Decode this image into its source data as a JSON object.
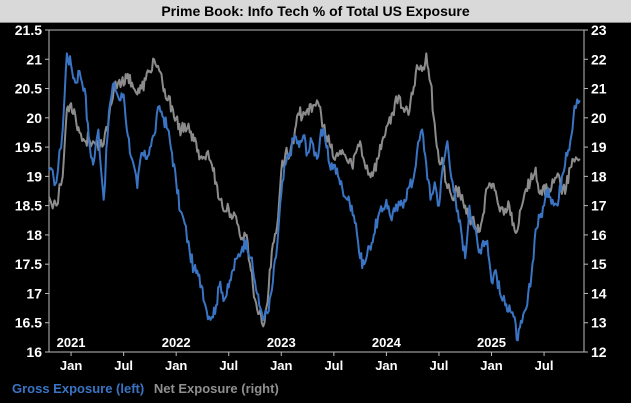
{
  "chart_data": {
    "type": "line",
    "title": "Prime Book: Info Tech % of Total US Exposure",
    "left_axis": {
      "range": [
        16,
        21.5
      ],
      "ticks": [
        16,
        16.5,
        17,
        17.5,
        18,
        18.5,
        19,
        19.5,
        20,
        20.5,
        21,
        21.5
      ]
    },
    "right_axis": {
      "range": [
        12,
        23
      ],
      "ticks": [
        12,
        13,
        14,
        15,
        16,
        17,
        18,
        19,
        20,
        21,
        22,
        23
      ]
    },
    "x_range": [
      2020.83,
      2025.92
    ],
    "month_ticks": [
      {
        "label": "Jan",
        "x": 2021.04
      },
      {
        "label": "Jul",
        "x": 2021.54
      },
      {
        "label": "Jan",
        "x": 2022.04
      },
      {
        "label": "Jul",
        "x": 2022.54
      },
      {
        "label": "Jan",
        "x": 2023.04
      },
      {
        "label": "Jul",
        "x": 2023.54
      },
      {
        "label": "Jan",
        "x": 2024.04
      },
      {
        "label": "Jul",
        "x": 2024.54
      },
      {
        "label": "Jan",
        "x": 2025.04
      },
      {
        "label": "Jul",
        "x": 2025.54
      }
    ],
    "year_labels": [
      {
        "label": "2021",
        "x": 2021.04
      },
      {
        "label": "2022",
        "x": 2022.04
      },
      {
        "label": "2023",
        "x": 2023.04
      },
      {
        "label": "2024",
        "x": 2024.04
      },
      {
        "label": "2025",
        "x": 2025.04
      }
    ],
    "series": [
      {
        "name": "Gross Exposure (left)",
        "axis": "left",
        "color": "#3a74c4",
        "x": [
          2020.83,
          2020.9,
          2020.96,
          2021.0,
          2021.04,
          2021.08,
          2021.12,
          2021.17,
          2021.21,
          2021.25,
          2021.3,
          2021.35,
          2021.4,
          2021.45,
          2021.5,
          2021.54,
          2021.58,
          2021.62,
          2021.67,
          2021.71,
          2021.75,
          2021.79,
          2021.83,
          2021.88,
          2021.92,
          2021.96,
          2022.0,
          2022.04,
          2022.08,
          2022.12,
          2022.17,
          2022.21,
          2022.25,
          2022.29,
          2022.33,
          2022.38,
          2022.42,
          2022.46,
          2022.5,
          2022.54,
          2022.58,
          2022.62,
          2022.67,
          2022.71,
          2022.75,
          2022.79,
          2022.83,
          2022.88,
          2022.92,
          2022.96,
          2023.0,
          2023.04,
          2023.08,
          2023.12,
          2023.17,
          2023.21,
          2023.25,
          2023.29,
          2023.33,
          2023.38,
          2023.42,
          2023.46,
          2023.5,
          2023.54,
          2023.58,
          2023.62,
          2023.67,
          2023.71,
          2023.75,
          2023.79,
          2023.83,
          2023.88,
          2023.92,
          2023.96,
          2024.0,
          2024.04,
          2024.08,
          2024.12,
          2024.17,
          2024.21,
          2024.25,
          2024.29,
          2024.33,
          2024.38,
          2024.42,
          2024.46,
          2024.5,
          2024.54,
          2024.58,
          2024.62,
          2024.67,
          2024.71,
          2024.75,
          2024.79,
          2024.83,
          2024.88,
          2024.92,
          2024.96,
          2025.0,
          2025.04,
          2025.08,
          2025.12,
          2025.17,
          2025.21,
          2025.25,
          2025.29,
          2025.33,
          2025.38,
          2025.42,
          2025.46,
          2025.5,
          2025.54,
          2025.58,
          2025.62,
          2025.67,
          2025.71,
          2025.75,
          2025.79,
          2025.83,
          2025.88
        ],
        "values": [
          19.1,
          18.9,
          19.8,
          21.1,
          20.9,
          20.6,
          20.8,
          20.5,
          19.6,
          19.2,
          19.8,
          18.6,
          20.1,
          20.6,
          20.3,
          20.4,
          19.7,
          19.3,
          18.8,
          19.4,
          19.3,
          19.5,
          19.7,
          20.2,
          20.0,
          19.8,
          19.4,
          18.9,
          18.4,
          18.2,
          17.7,
          17.4,
          17.3,
          17.1,
          16.7,
          16.6,
          16.8,
          17.2,
          16.9,
          17.1,
          17.4,
          17.6,
          17.8,
          17.9,
          17.6,
          17.2,
          16.8,
          16.6,
          16.7,
          17.2,
          17.8,
          18.7,
          19.2,
          19.4,
          19.7,
          19.5,
          19.7,
          19.4,
          19.6,
          19.3,
          19.8,
          19.6,
          19.2,
          19.2,
          19.0,
          18.8,
          18.6,
          18.5,
          18.2,
          17.6,
          17.5,
          17.8,
          18.0,
          18.3,
          18.4,
          18.6,
          18.3,
          18.4,
          18.5,
          18.6,
          18.8,
          18.9,
          19.4,
          19.8,
          19.2,
          18.6,
          18.9,
          18.5,
          19.2,
          19.6,
          18.9,
          18.4,
          18.1,
          17.6,
          18.5,
          18.1,
          17.7,
          17.9,
          17.9,
          17.2,
          17.4,
          17.0,
          16.8,
          16.8,
          16.6,
          16.2,
          16.5,
          16.8,
          17.3,
          18.1,
          18.3,
          18.5,
          18.8,
          18.6,
          18.5,
          19.0,
          19.4,
          19.6,
          20.2,
          20.3
        ]
      },
      {
        "name": "Net Exposure (right)",
        "axis": "right",
        "color": "#8c8c8c",
        "x": [
          2020.83,
          2020.9,
          2020.96,
          2021.0,
          2021.04,
          2021.08,
          2021.12,
          2021.17,
          2021.21,
          2021.25,
          2021.3,
          2021.35,
          2021.4,
          2021.45,
          2021.5,
          2021.54,
          2021.58,
          2021.62,
          2021.67,
          2021.71,
          2021.75,
          2021.79,
          2021.83,
          2021.88,
          2021.92,
          2021.96,
          2022.0,
          2022.04,
          2022.08,
          2022.12,
          2022.17,
          2022.21,
          2022.25,
          2022.29,
          2022.33,
          2022.38,
          2022.42,
          2022.46,
          2022.5,
          2022.54,
          2022.58,
          2022.62,
          2022.67,
          2022.71,
          2022.75,
          2022.79,
          2022.83,
          2022.88,
          2022.92,
          2022.96,
          2023.0,
          2023.04,
          2023.08,
          2023.12,
          2023.17,
          2023.21,
          2023.25,
          2023.29,
          2023.33,
          2023.38,
          2023.42,
          2023.46,
          2023.5,
          2023.54,
          2023.58,
          2023.62,
          2023.67,
          2023.71,
          2023.75,
          2023.79,
          2023.83,
          2023.88,
          2023.92,
          2023.96,
          2024.0,
          2024.04,
          2024.08,
          2024.12,
          2024.17,
          2024.21,
          2024.25,
          2024.29,
          2024.33,
          2024.38,
          2024.42,
          2024.46,
          2024.5,
          2024.54,
          2024.58,
          2024.62,
          2024.67,
          2024.71,
          2024.75,
          2024.79,
          2024.83,
          2024.88,
          2024.92,
          2024.96,
          2025.0,
          2025.04,
          2025.08,
          2025.12,
          2025.17,
          2025.21,
          2025.25,
          2025.29,
          2025.33,
          2025.38,
          2025.42,
          2025.46,
          2025.5,
          2025.54,
          2025.58,
          2025.62,
          2025.67,
          2025.71,
          2025.75,
          2025.79,
          2025.83,
          2025.88
        ],
        "values": [
          17.3,
          17.0,
          18.0,
          20.3,
          20.5,
          20.1,
          19.5,
          19.2,
          19.3,
          19.2,
          18.9,
          19.1,
          20.0,
          21.1,
          21.3,
          21.1,
          21.5,
          21.2,
          20.8,
          21.0,
          21.3,
          21.6,
          22.0,
          21.6,
          20.9,
          20.6,
          20.4,
          20.0,
          19.4,
          19.8,
          19.5,
          19.2,
          18.9,
          18.6,
          18.8,
          18.4,
          17.8,
          17.2,
          16.8,
          16.9,
          16.6,
          16.4,
          15.9,
          16.0,
          14.8,
          13.8,
          13.3,
          13.0,
          14.2,
          15.7,
          16.3,
          18.2,
          18.8,
          18.7,
          19.6,
          20.1,
          20.2,
          20.3,
          20.2,
          20.6,
          20.1,
          19.4,
          19.1,
          18.6,
          18.7,
          18.9,
          18.5,
          18.4,
          18.8,
          19.2,
          18.5,
          18.1,
          18.2,
          18.6,
          19.2,
          19.7,
          19.8,
          20.5,
          20.7,
          20.2,
          20.1,
          20.8,
          21.8,
          21.6,
          22.2,
          21.2,
          19.8,
          18.5,
          18.4,
          17.6,
          17.2,
          17.6,
          17.2,
          17.0,
          16.6,
          16.3,
          16.1,
          16.7,
          17.6,
          17.6,
          17.5,
          16.8,
          16.9,
          17.0,
          16.4,
          16.2,
          17.0,
          17.5,
          18.1,
          18.3,
          17.4,
          17.7,
          17.3,
          17.9,
          18.1,
          17.4,
          17.6,
          18.3,
          18.5,
          18.6
        ]
      }
    ],
    "legend": {
      "placement": "bottom-left"
    }
  }
}
